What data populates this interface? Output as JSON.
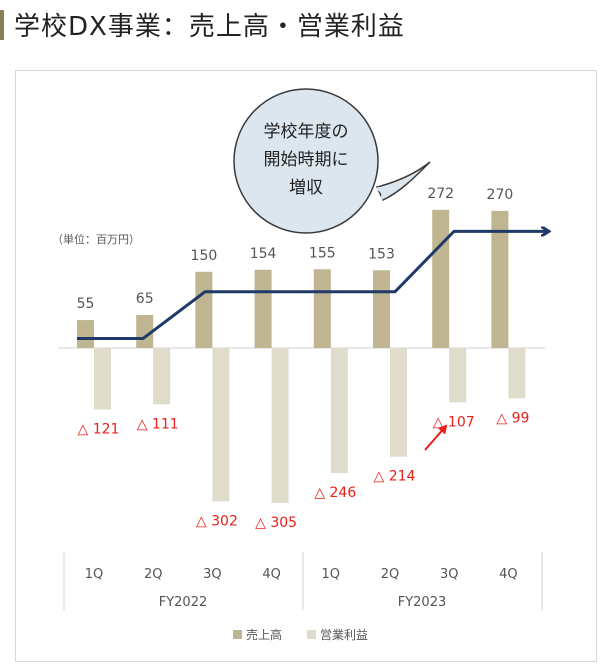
{
  "page": {
    "title": "学校DX事業：売上高・営業利益"
  },
  "chart_data": {
    "type": "bar",
    "title": "学校DX事業：売上高・営業利益",
    "unit_label": "（単位：百万円）",
    "categories": [
      "1Q",
      "2Q",
      "3Q",
      "4Q",
      "1Q",
      "2Q",
      "3Q",
      "4Q"
    ],
    "groups": [
      {
        "label": "FY2022",
        "span": 4
      },
      {
        "label": "FY2023",
        "span": 4
      }
    ],
    "series": [
      {
        "name": "売上高",
        "values": [
          55,
          65,
          150,
          154,
          155,
          153,
          272,
          270
        ],
        "color": "#bfb590"
      },
      {
        "name": "営業利益",
        "values": [
          -121,
          -111,
          -302,
          -305,
          -246,
          -214,
          -107,
          -99
        ],
        "color": "#e0dccb"
      }
    ],
    "revenue_labels": [
      "55",
      "65",
      "150",
      "154",
      "155",
      "153",
      "272",
      "270"
    ],
    "profit_labels": [
      "△ 121",
      "△ 111",
      "△ 302",
      "△ 305",
      "△ 246",
      "△ 214",
      "△ 107",
      "△ 99"
    ],
    "trend_arrow_color": "#1f3a68",
    "loss_label_color": "#e8201a",
    "callout_lines": [
      "学校年度の",
      "開始時期に",
      "増収"
    ],
    "legend": [
      "売上高",
      "営業利益"
    ],
    "legend_position": "bottom"
  }
}
